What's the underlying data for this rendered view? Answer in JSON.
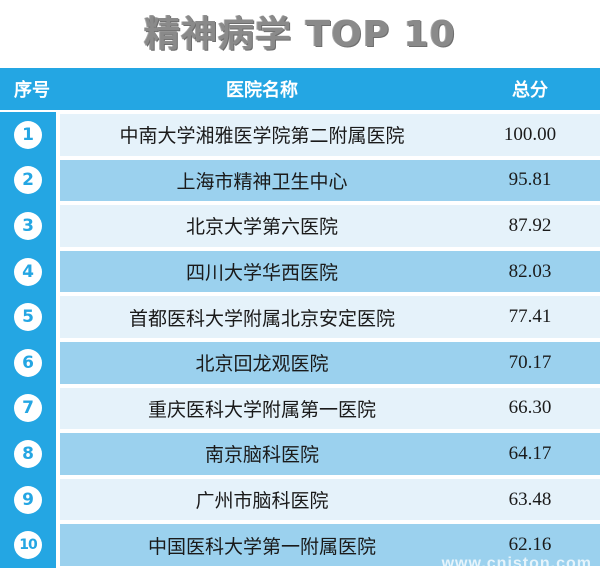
{
  "title": "精神病学 TOP 10",
  "header": {
    "rank": "序号",
    "name": "医院名称",
    "score": "总分"
  },
  "rows": [
    {
      "rank": "1",
      "name": "中南大学湘雅医学院第二附属医院",
      "score": "100.00"
    },
    {
      "rank": "2",
      "name": "上海市精神卫生中心",
      "score": "95.81"
    },
    {
      "rank": "3",
      "name": "北京大学第六医院",
      "score": "87.92"
    },
    {
      "rank": "4",
      "name": "四川大学华西医院",
      "score": "82.03"
    },
    {
      "rank": "5",
      "name": "首都医科大学附属北京安定医院",
      "score": "77.41"
    },
    {
      "rank": "6",
      "name": "北京回龙观医院",
      "score": "70.17"
    },
    {
      "rank": "7",
      "name": "重庆医科大学附属第一医院",
      "score": "66.30"
    },
    {
      "rank": "8",
      "name": "南京脑科医院",
      "score": "64.17"
    },
    {
      "rank": "9",
      "name": "广州市脑科医院",
      "score": "63.48"
    },
    {
      "rank": "10",
      "name": "中国医科大学第一附属医院",
      "score": "62.16"
    }
  ],
  "watermark": "www.cnjston.com",
  "colors": {
    "accent": "#24a6e3",
    "band_light": "#e5f2fa",
    "band_dark": "#9bd1ee",
    "title": "#8a8a8a"
  }
}
